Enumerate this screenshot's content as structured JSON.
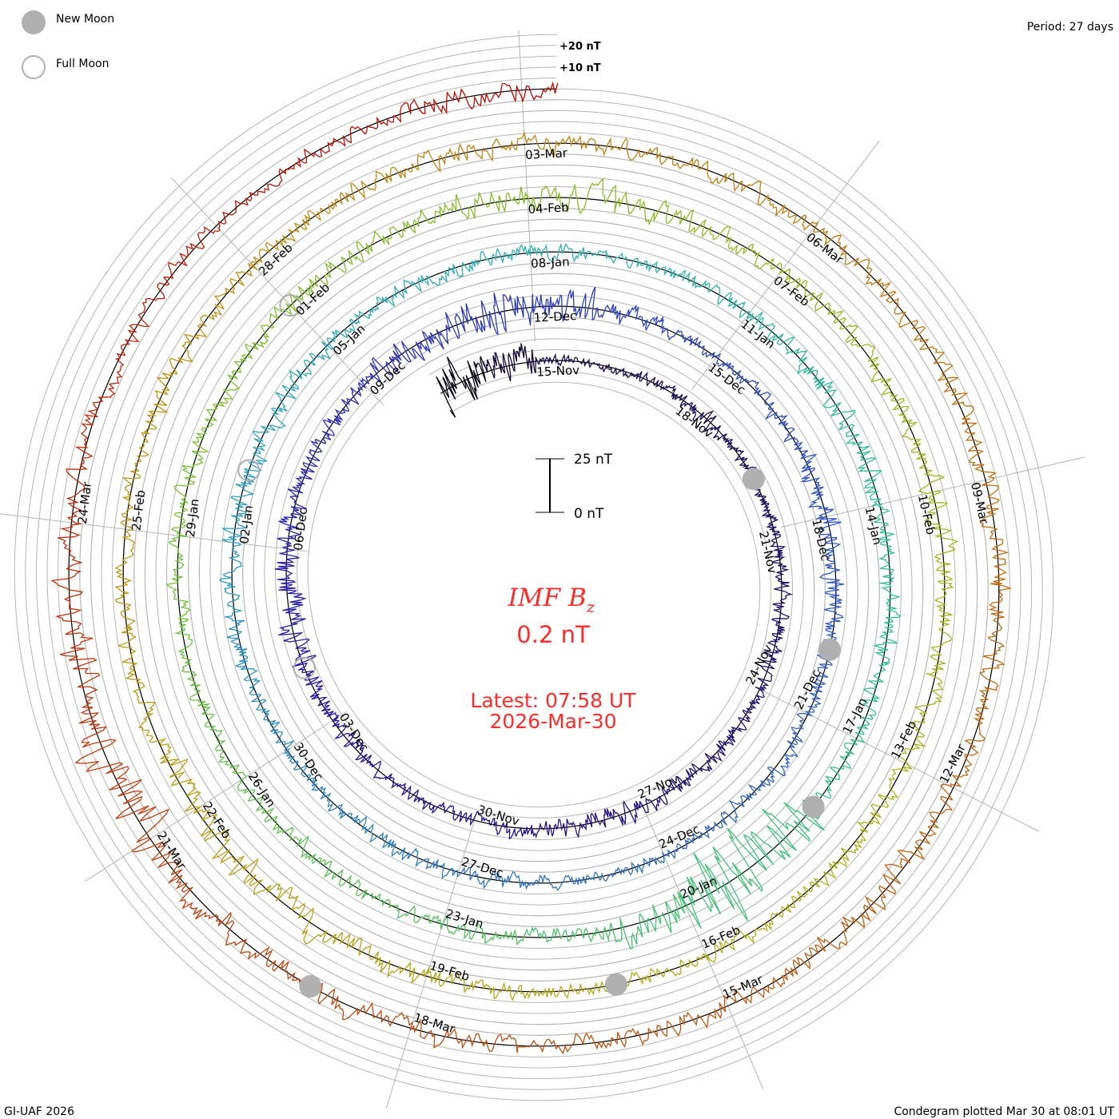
{
  "chart_data": {
    "type": "line",
    "subtype": "condegram-spiral",
    "title": "IMF B",
    "title_subscript": "z",
    "latest_value": "0.2 nT",
    "latest_time": "Latest: 07:58 UT",
    "latest_date": "2026-Mar-30",
    "period_label": "Period: 27 days",
    "period_days": 27,
    "scale_bar": {
      "top_label": "25 nT",
      "bottom_label": "0 nT",
      "nT": 25
    },
    "grid_labels": [
      "+20 nT",
      "+10 nT"
    ],
    "grid_step_nT": 5,
    "start_day_offset": -2,
    "end_day_offset": 135.33,
    "date_label_step_days": 3,
    "date_labels": [
      "15-Nov",
      "18-Nov",
      "21-Nov",
      "24-Nov",
      "27-Nov",
      "30-Nov",
      "03-Dec",
      "06-Dec",
      "09-Dec",
      "12-Dec",
      "15-Dec",
      "18-Dec",
      "21-Dec",
      "24-Dec",
      "27-Dec",
      "30-Dec",
      "02-Jan",
      "05-Jan",
      "08-Jan",
      "11-Jan",
      "14-Jan",
      "17-Jan",
      "20-Jan",
      "23-Jan",
      "26-Jan",
      "29-Jan",
      "01-Feb",
      "04-Feb",
      "07-Feb",
      "10-Feb",
      "13-Feb",
      "16-Feb",
      "19-Feb",
      "22-Feb",
      "25-Feb",
      "28-Feb",
      "03-Mar",
      "06-Mar",
      "09-Mar",
      "12-Mar",
      "15-Mar",
      "18-Mar",
      "21-Mar",
      "24-Mar"
    ],
    "bz_daily_spread_nT": [
      14,
      12,
      3,
      3,
      4,
      6,
      4,
      4,
      5,
      5,
      5,
      4,
      6,
      6,
      7,
      6,
      5,
      4,
      4,
      5,
      6,
      9,
      9,
      7,
      5,
      6,
      8,
      10,
      12,
      10,
      6,
      4,
      4,
      5,
      7,
      7,
      6,
      6,
      6,
      5,
      4,
      4,
      4,
      5,
      5,
      5,
      4,
      5,
      6,
      6,
      7,
      7,
      6,
      5,
      5,
      5,
      5,
      4,
      5,
      6,
      7,
      7,
      6,
      6,
      5,
      5,
      18,
      22,
      12,
      6,
      5,
      5,
      6,
      5,
      5,
      5,
      5,
      6,
      5,
      5,
      6,
      6,
      8,
      9,
      7,
      6,
      6,
      6,
      7,
      7,
      6,
      6,
      6,
      6,
      6,
      5,
      5,
      6,
      7,
      9,
      9,
      8,
      6,
      5,
      5,
      6,
      6,
      6,
      6,
      6,
      6,
      5,
      6,
      6,
      6,
      6,
      7,
      7,
      6,
      7,
      8,
      6,
      6,
      6,
      6,
      7,
      7,
      10,
      14,
      12,
      8,
      6,
      5,
      5,
      4,
      5,
      7,
      6
    ],
    "trace_color_stops": [
      {
        "day": -2,
        "color": "#000000"
      },
      {
        "day": 0,
        "color": "#1a0a48"
      },
      {
        "day": 18,
        "color": "#26169a"
      },
      {
        "day": 28,
        "color": "#3040c0"
      },
      {
        "day": 42,
        "color": "#3078c0"
      },
      {
        "day": 50,
        "color": "#30a8c0"
      },
      {
        "day": 62,
        "color": "#30c090"
      },
      {
        "day": 76,
        "color": "#78c030"
      },
      {
        "day": 92,
        "color": "#b0b018"
      },
      {
        "day": 104,
        "color": "#c09010"
      },
      {
        "day": 114,
        "color": "#c07010"
      },
      {
        "day": 126,
        "color": "#c04010"
      },
      {
        "day": 136,
        "color": "#c00000"
      }
    ],
    "moon_phases": [
      {
        "type": "new",
        "day": 5
      },
      {
        "type": "new",
        "day": 35
      },
      {
        "type": "new",
        "day": 64
      },
      {
        "type": "new",
        "day": 94
      },
      {
        "type": "new",
        "day": 124
      },
      {
        "type": "full",
        "day": 19
      },
      {
        "type": "full",
        "day": 49
      },
      {
        "type": "full",
        "day": 78
      }
    ],
    "moon_color": "#b0b0b0"
  },
  "legend": {
    "new_moon": "New Moon",
    "full_moon": "Full Moon"
  },
  "footer": {
    "left": "GI-UAF 2026",
    "right": "Condegram plotted Mar 30 at 08:01 UT"
  }
}
